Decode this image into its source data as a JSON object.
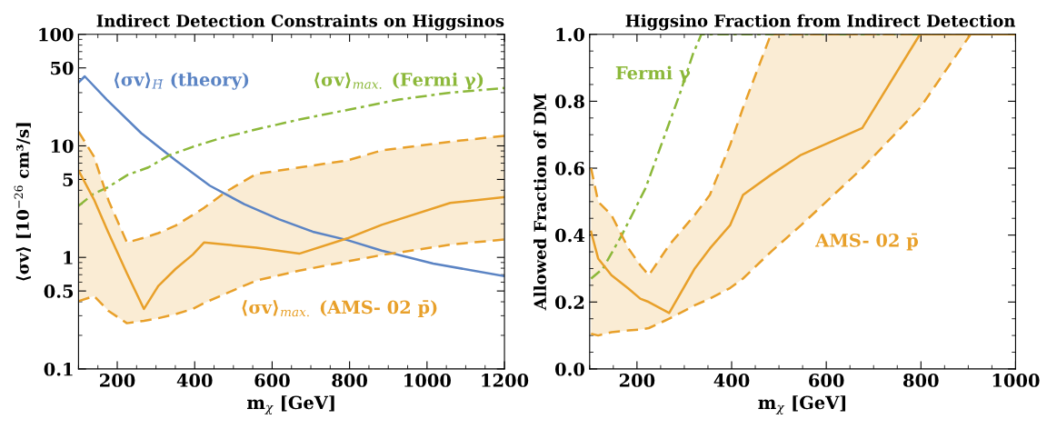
{
  "chart_data": [
    {
      "type": "line",
      "title": "Indirect Detection Constraints on Higgsinos",
      "xlabel": "m$_{χ}$ [GeV]",
      "ylabel": "⟨σv⟩ [10$^{−26}$ cm³/s]",
      "log": "y",
      "grid": false,
      "xlim": [
        100,
        1200
      ],
      "xticks": [
        200,
        400,
        600,
        800,
        1000,
        1200
      ],
      "ylim": [
        0.1,
        100
      ],
      "yticks": [
        0.1,
        0.5,
        1,
        5,
        10,
        50,
        100
      ],
      "series": [
        {
          "color": "#5b84c4",
          "line_style": "solid",
          "x": [
            100,
            116,
            173,
            262,
            351,
            439,
            528,
            617,
            705,
            794,
            883,
            1016,
            1200
          ],
          "values": [
            37,
            42,
            26,
            13,
            7.4,
            4.4,
            3.0,
            2.2,
            1.7,
            1.43,
            1.15,
            0.88,
            0.68
          ]
        },
        {
          "color": "#8cb83a",
          "line_style": "dashdot",
          "x": [
            100,
            138,
            173,
            227,
            280,
            333,
            395,
            466,
            572,
            670,
            794,
            927,
            1060,
            1200
          ],
          "values": [
            2.9,
            3.7,
            4.2,
            5.5,
            6.4,
            8.2,
            9.8,
            11.7,
            14.4,
            17.2,
            21,
            26,
            30,
            33
          ]
        },
        {
          "color": "#e8a02a",
          "line_style": "solid",
          "x": [
            100,
            140,
            178,
            225,
            269,
            306,
            351,
            395,
            424,
            484,
            559,
            670,
            794,
            883,
            1060,
            1200
          ],
          "values": [
            6.0,
            3.3,
            1.64,
            0.72,
            0.345,
            0.555,
            0.79,
            1.06,
            1.36,
            1.3,
            1.22,
            1.08,
            1.48,
            1.96,
            3.08,
            3.47
          ],
          "lower": [
            0.405,
            0.45,
            0.33,
            0.257,
            0.27,
            0.285,
            0.31,
            0.345,
            0.39,
            0.48,
            0.62,
            0.76,
            0.92,
            1.05,
            1.3,
            1.45
          ],
          "upper": [
            13.4,
            8,
            3.2,
            1.36,
            1.5,
            1.65,
            1.93,
            2.4,
            2.78,
            3.94,
            5.6,
            6.4,
            7.4,
            9.1,
            10.9,
            12.3
          ]
        },
        {
          "color": "#e8a02a",
          "line_style": "dashed",
          "x": [
            100,
            140,
            178,
            225,
            269,
            306,
            351,
            395,
            424,
            484,
            559,
            670,
            794,
            883,
            1060,
            1200
          ],
          "values": [
            13.4,
            8,
            3.2,
            1.36,
            1.5,
            1.65,
            1.93,
            2.4,
            2.78,
            3.94,
            5.6,
            6.4,
            7.4,
            9.1,
            10.9,
            12.3
          ]
        },
        {
          "color": "#e8a02a",
          "line_style": "dashed",
          "x": [
            100,
            140,
            178,
            225,
            269,
            306,
            351,
            395,
            424,
            484,
            559,
            670,
            794,
            883,
            1060,
            1200
          ],
          "values": [
            0.405,
            0.45,
            0.33,
            0.257,
            0.27,
            0.285,
            0.31,
            0.345,
            0.39,
            0.48,
            0.62,
            0.76,
            0.92,
            1.05,
            1.3,
            1.45
          ]
        }
      ],
      "annotations": [
        "⟨σv⟩$_{H̃}$ (theory)",
        "⟨σv⟩$_{max.}$ (Fermi γ)",
        "⟨σv⟩$_{max.}$ (AMS- 02 p̄)"
      ]
    },
    {
      "type": "line",
      "title": "Higgsino Fraction from Indirect Detection",
      "xlabel": "m$_{χ}$ [GeV]",
      "ylabel": "Allowed Fraction of DM",
      "grid": false,
      "xlim": [
        100,
        1000
      ],
      "xticks": [
        200,
        400,
        600,
        800,
        1000
      ],
      "ylim": [
        0,
        1
      ],
      "yticks": [
        {
          "value": 0,
          "label": "0.0"
        },
        0.2,
        0.4,
        0.6,
        0.8,
        {
          "value": 1,
          "label": "1.0"
        }
      ],
      "series": [
        {
          "color": "#8cb83a",
          "line_style": "dashdot",
          "x": [
            103,
            128,
            168,
            218,
            254,
            290,
            318,
            336,
            1000
          ],
          "values": [
            0.27,
            0.3,
            0.4,
            0.54,
            0.68,
            0.82,
            0.94,
            1.0,
            1.0
          ]
        },
        {
          "color": "#e8a02a",
          "line_style": "solid",
          "x": [
            103,
            118,
            146,
            182,
            207,
            225,
            268,
            322,
            354,
            397,
            424,
            483,
            547,
            676,
            798,
            905,
            1000
          ],
          "values": [
            0.41,
            0.33,
            0.28,
            0.24,
            0.21,
            0.2,
            0.167,
            0.3,
            0.36,
            0.43,
            0.52,
            0.58,
            0.64,
            0.72,
            1.0,
            1.0,
            1.0
          ],
          "lower": [
            0.105,
            0.1,
            0.11,
            0.115,
            0.118,
            0.122,
            0.15,
            0.19,
            0.21,
            0.242,
            0.27,
            0.35,
            0.43,
            0.6,
            0.78,
            1.0,
            1.0
          ],
          "upper": [
            0.6,
            0.5,
            0.46,
            0.36,
            0.31,
            0.28,
            0.37,
            0.46,
            0.52,
            0.67,
            0.78,
            1.0,
            1.0,
            1.0,
            1.0,
            1.0,
            1.0
          ]
        },
        {
          "color": "#e8a02a",
          "line_style": "dashed",
          "x": [
            103,
            118,
            146,
            182,
            207,
            225,
            268,
            322,
            354,
            397,
            424,
            483,
            547,
            676,
            798,
            905,
            1000
          ],
          "values": [
            0.6,
            0.5,
            0.46,
            0.36,
            0.31,
            0.28,
            0.37,
            0.46,
            0.52,
            0.67,
            0.78,
            1.0,
            1.0,
            1.0,
            1.0,
            1.0,
            1.0
          ]
        },
        {
          "color": "#e8a02a",
          "line_style": "dashed",
          "x": [
            103,
            118,
            146,
            182,
            207,
            225,
            268,
            322,
            354,
            397,
            424,
            483,
            547,
            676,
            798,
            905,
            1000
          ],
          "values": [
            0.105,
            0.1,
            0.11,
            0.115,
            0.118,
            0.122,
            0.15,
            0.19,
            0.21,
            0.242,
            0.27,
            0.35,
            0.43,
            0.6,
            0.78,
            1.0,
            1.0
          ]
        }
      ],
      "annotations": [
        "Fermi γ",
        "AMS- 02 p̄"
      ]
    }
  ]
}
